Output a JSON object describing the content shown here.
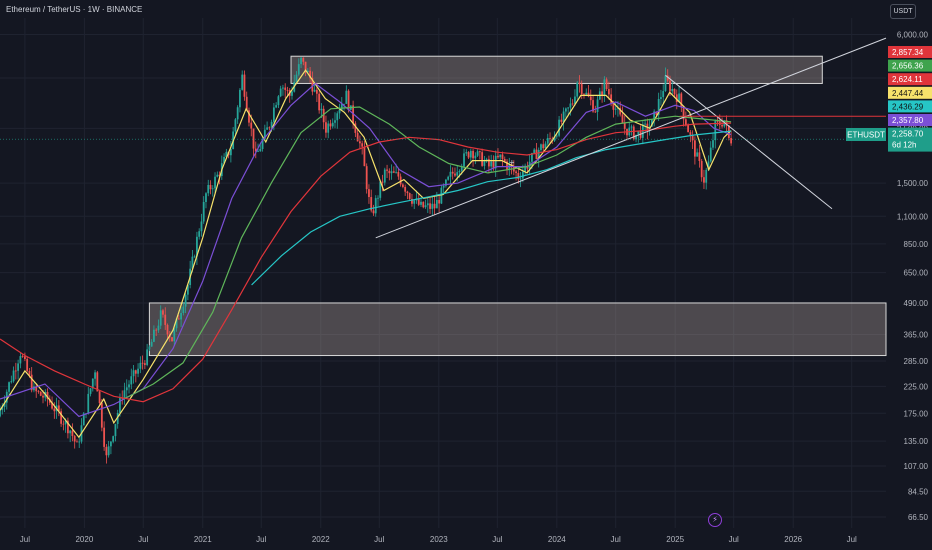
{
  "header": {
    "title": "Ethereum / TetherUS · 1W · BINANCE",
    "currency": "USDT"
  },
  "chart_data": {
    "type": "candlestick",
    "title": "Ethereum / TetherUS · 1W · BINANCE",
    "y_scale": "log",
    "ylim": [
      60,
      7000
    ],
    "xlim": [
      "2019-04-15",
      "2026-10-15"
    ],
    "y_ticks": [
      6000,
      4000,
      2500,
      1500,
      1100,
      850,
      650,
      490,
      365,
      285,
      225,
      175,
      135,
      107,
      84.5,
      66.5
    ],
    "y_tick_labels": [
      "6,000.00",
      "4,000.00",
      "2,500.00",
      "1,500.00",
      "1,100.00",
      "850.00",
      "650.00",
      "490.00",
      "365.00",
      "285.00",
      "225.00",
      "175.00",
      "135.00",
      "107.00",
      "84.50",
      "66.50"
    ],
    "x_ticks": [
      {
        "label": "Jul",
        "date": "2019-07-01"
      },
      {
        "label": "2020",
        "date": "2020-01-01"
      },
      {
        "label": "Jul",
        "date": "2020-07-01"
      },
      {
        "label": "2021",
        "date": "2021-01-01"
      },
      {
        "label": "Jul",
        "date": "2021-07-01"
      },
      {
        "label": "2022",
        "date": "2022-01-01"
      },
      {
        "label": "Jul",
        "date": "2022-07-01"
      },
      {
        "label": "2023",
        "date": "2023-01-01"
      },
      {
        "label": "Jul",
        "date": "2023-07-01"
      },
      {
        "label": "2024",
        "date": "2024-01-01"
      },
      {
        "label": "Jul",
        "date": "2024-07-01"
      },
      {
        "label": "2025",
        "date": "2025-01-01"
      },
      {
        "label": "Jul",
        "date": "2025-07-01"
      },
      {
        "label": "2026",
        "date": "2026-01-01"
      },
      {
        "label": "Jul",
        "date": "2026-07-01"
      }
    ],
    "price_path": [
      [
        "2019-04-15",
        170
      ],
      [
        "2019-06-24",
        310
      ],
      [
        "2019-08-05",
        215
      ],
      [
        "2019-09-16",
        200
      ],
      [
        "2019-11-25",
        150
      ],
      [
        "2019-12-16",
        128
      ],
      [
        "2020-02-10",
        265
      ],
      [
        "2020-03-16",
        115
      ],
      [
        "2020-05-04",
        210
      ],
      [
        "2020-07-20",
        300
      ],
      [
        "2020-09-01",
        440
      ],
      [
        "2020-10-05",
        350
      ],
      [
        "2020-11-23",
        580
      ],
      [
        "2021-01-18",
        1350
      ],
      [
        "2021-02-22",
        1600
      ],
      [
        "2021-04-05",
        2100
      ],
      [
        "2021-05-10",
        4050
      ],
      [
        "2021-06-21",
        1900
      ],
      [
        "2021-08-02",
        2600
      ],
      [
        "2021-09-06",
        3800
      ],
      [
        "2021-10-04",
        3400
      ],
      [
        "2021-11-08",
        4700
      ],
      [
        "2021-12-06",
        4000
      ],
      [
        "2022-01-24",
        2500
      ],
      [
        "2022-03-28",
        3400
      ],
      [
        "2022-05-16",
        2000
      ],
      [
        "2022-06-13",
        1100
      ],
      [
        "2022-07-25",
        1650
      ],
      [
        "2022-09-05",
        1600
      ],
      [
        "2022-10-17",
        1300
      ],
      [
        "2022-11-14",
        1200
      ],
      [
        "2022-12-26",
        1200
      ],
      [
        "2023-02-13",
        1600
      ],
      [
        "2023-04-17",
        2050
      ],
      [
        "2023-06-12",
        1750
      ],
      [
        "2023-07-17",
        1900
      ],
      [
        "2023-09-11",
        1600
      ],
      [
        "2023-11-13",
        2050
      ],
      [
        "2023-12-25",
        2300
      ],
      [
        "2024-02-26",
        3200
      ],
      [
        "2024-03-11",
        3900
      ],
      [
        "2024-05-06",
        3000
      ],
      [
        "2024-06-03",
        3800
      ],
      [
        "2024-08-05",
        2500
      ],
      [
        "2024-09-09",
        2350
      ],
      [
        "2024-10-28",
        2600
      ],
      [
        "2024-12-09",
        3900
      ],
      [
        "2025-01-20",
        3300
      ],
      [
        "2025-02-24",
        2300
      ],
      [
        "2025-04-07",
        1550
      ],
      [
        "2025-04-21",
        1800
      ],
      [
        "2025-05-12",
        2550
      ],
      [
        "2025-06-09",
        2700
      ],
      [
        "2025-06-23",
        2259
      ]
    ],
    "moving_averages": [
      {
        "color": "#f7e26b",
        "points": [
          [
            "2019-04-15",
            180
          ],
          [
            "2019-07-01",
            260
          ],
          [
            "2019-09-01",
            210
          ],
          [
            "2019-12-15",
            140
          ],
          [
            "2020-03-01",
            200
          ],
          [
            "2020-04-01",
            160
          ],
          [
            "2020-07-01",
            240
          ],
          [
            "2020-10-01",
            380
          ],
          [
            "2021-01-01",
            900
          ],
          [
            "2021-03-01",
            1700
          ],
          [
            "2021-05-15",
            3000
          ],
          [
            "2021-07-15",
            2200
          ],
          [
            "2021-09-15",
            3300
          ],
          [
            "2021-11-15",
            4300
          ],
          [
            "2022-01-15",
            3300
          ],
          [
            "2022-03-15",
            2900
          ],
          [
            "2022-05-15",
            2300
          ],
          [
            "2022-07-15",
            1400
          ],
          [
            "2022-09-15",
            1550
          ],
          [
            "2022-11-15",
            1300
          ],
          [
            "2023-01-15",
            1350
          ],
          [
            "2023-04-15",
            1850
          ],
          [
            "2023-07-15",
            1850
          ],
          [
            "2023-10-01",
            1650
          ],
          [
            "2023-12-15",
            2200
          ],
          [
            "2024-03-15",
            3400
          ],
          [
            "2024-06-01",
            3400
          ],
          [
            "2024-08-15",
            2700
          ],
          [
            "2024-10-15",
            2500
          ],
          [
            "2024-12-15",
            3500
          ],
          [
            "2025-02-15",
            2900
          ],
          [
            "2025-04-15",
            1700
          ],
          [
            "2025-06-01",
            2300
          ],
          [
            "2025-06-23",
            2450
          ]
        ]
      },
      {
        "color": "#7b4fd6",
        "points": [
          [
            "2019-04-15",
            200
          ],
          [
            "2019-09-01",
            230
          ],
          [
            "2019-12-15",
            170
          ],
          [
            "2020-04-01",
            190
          ],
          [
            "2020-07-01",
            220
          ],
          [
            "2020-10-01",
            320
          ],
          [
            "2021-01-01",
            600
          ],
          [
            "2021-04-01",
            1300
          ],
          [
            "2021-07-01",
            2200
          ],
          [
            "2021-10-01",
            3100
          ],
          [
            "2021-12-15",
            3800
          ],
          [
            "2022-03-01",
            3200
          ],
          [
            "2022-06-01",
            2500
          ],
          [
            "2022-09-01",
            1700
          ],
          [
            "2022-12-01",
            1450
          ],
          [
            "2023-03-01",
            1500
          ],
          [
            "2023-07-01",
            1750
          ],
          [
            "2023-10-01",
            1750
          ],
          [
            "2024-01-01",
            2100
          ],
          [
            "2024-04-01",
            2900
          ],
          [
            "2024-07-01",
            3200
          ],
          [
            "2024-10-01",
            2800
          ],
          [
            "2025-01-01",
            3100
          ],
          [
            "2025-03-01",
            2950
          ],
          [
            "2025-05-01",
            2500
          ],
          [
            "2025-06-23",
            2358
          ]
        ]
      },
      {
        "color": "#5fb65a",
        "points": [
          [
            "2020-05-01",
            200
          ],
          [
            "2020-08-01",
            230
          ],
          [
            "2020-11-01",
            280
          ],
          [
            "2021-02-01",
            450
          ],
          [
            "2021-05-01",
            900
          ],
          [
            "2021-08-01",
            1500
          ],
          [
            "2021-11-01",
            2400
          ],
          [
            "2022-02-01",
            3000
          ],
          [
            "2022-05-01",
            3050
          ],
          [
            "2022-08-01",
            2600
          ],
          [
            "2022-11-01",
            2100
          ],
          [
            "2023-02-01",
            1800
          ],
          [
            "2023-06-01",
            1650
          ],
          [
            "2023-10-01",
            1750
          ],
          [
            "2024-01-01",
            1950
          ],
          [
            "2024-04-01",
            2300
          ],
          [
            "2024-07-01",
            2600
          ],
          [
            "2024-10-01",
            2700
          ],
          [
            "2025-01-01",
            2800
          ],
          [
            "2025-03-01",
            2750
          ],
          [
            "2025-06-23",
            2656
          ]
        ]
      },
      {
        "color": "#e0353b",
        "points": [
          [
            "2019-04-15",
            350
          ],
          [
            "2019-07-01",
            300
          ],
          [
            "2019-10-01",
            260
          ],
          [
            "2020-01-01",
            230
          ],
          [
            "2020-04-01",
            205
          ],
          [
            "2020-07-01",
            195
          ],
          [
            "2020-10-01",
            220
          ],
          [
            "2021-01-01",
            290
          ],
          [
            "2021-04-01",
            460
          ],
          [
            "2021-07-01",
            750
          ],
          [
            "2021-10-01",
            1150
          ],
          [
            "2022-01-01",
            1600
          ],
          [
            "2022-04-01",
            2000
          ],
          [
            "2022-07-01",
            2200
          ],
          [
            "2022-10-01",
            2300
          ],
          [
            "2023-01-01",
            2250
          ],
          [
            "2023-04-01",
            2100
          ],
          [
            "2023-07-01",
            2000
          ],
          [
            "2023-10-01",
            1950
          ],
          [
            "2024-01-01",
            2050
          ],
          [
            "2024-04-01",
            2250
          ],
          [
            "2024-07-01",
            2400
          ],
          [
            "2024-10-01",
            2450
          ],
          [
            "2025-01-01",
            2550
          ],
          [
            "2025-03-01",
            2600
          ],
          [
            "2025-06-23",
            2624
          ]
        ]
      },
      {
        "color": "#26c6c6",
        "points": [
          [
            "2021-06-01",
            580
          ],
          [
            "2021-09-01",
            760
          ],
          [
            "2021-12-01",
            950
          ],
          [
            "2022-03-01",
            1100
          ],
          [
            "2022-06-01",
            1180
          ],
          [
            "2022-09-01",
            1250
          ],
          [
            "2022-12-01",
            1320
          ],
          [
            "2023-03-01",
            1400
          ],
          [
            "2023-06-01",
            1520
          ],
          [
            "2023-09-01",
            1580
          ],
          [
            "2023-12-01",
            1700
          ],
          [
            "2024-03-01",
            1900
          ],
          [
            "2024-06-01",
            2050
          ],
          [
            "2024-09-01",
            2150
          ],
          [
            "2024-12-01",
            2250
          ],
          [
            "2025-03-01",
            2350
          ],
          [
            "2025-06-23",
            2436
          ]
        ]
      }
    ],
    "annotations": {
      "zones": [
        {
          "name": "supply-zone",
          "y_low": 3800,
          "y_high": 4900,
          "x_start": "2021-10-01",
          "x_end": "2026-04-01"
        },
        {
          "name": "demand-zone",
          "y_low": 300,
          "y_high": 490,
          "x_start": "2020-07-20",
          "x_end": "2026-10-15"
        }
      ],
      "trendlines": [
        {
          "name": "rising-support",
          "color": "#d1d4dc",
          "from": [
            "2022-06-20",
            900
          ],
          "to": [
            "2026-10-15",
            5800
          ]
        },
        {
          "name": "falling-resistance",
          "color": "#d1d4dc",
          "from": [
            "2024-12-02",
            4100
          ],
          "to": [
            "2026-05-01",
            1180
          ]
        },
        {
          "name": "horizontal-resistance",
          "color": "#e0353b",
          "from": [
            "2025-01-15",
            2800
          ],
          "to": [
            "2026-10-15",
            2800
          ]
        }
      ],
      "markers": [
        {
          "symbol": "+",
          "date": "2023-08-15",
          "value": 1820
        }
      ]
    },
    "price_labels": [
      {
        "value": 2857.34,
        "text": "2,857.34",
        "color": "#e0353b"
      },
      {
        "value": 2656.36,
        "text": "2,656.36",
        "color": "#3fa34d"
      },
      {
        "value": 2624.11,
        "text": "2,624.11",
        "color": "#e0353b"
      },
      {
        "value": 2447.44,
        "text": "2,447.44",
        "color": "#f7e26b"
      },
      {
        "value": 2436.29,
        "text": "2,436.29",
        "color": "#26c6c6"
      },
      {
        "value": 2357.8,
        "text": "2,357.80",
        "color": "#7b4fd6"
      },
      {
        "value": 2258.7,
        "text": "2,258.70",
        "color": "#1f9e8a"
      }
    ],
    "last_price": {
      "symbol": "ETHUSDT",
      "value": 2258.7,
      "text": "2,258.70",
      "countdown": "6d 12h"
    }
  }
}
